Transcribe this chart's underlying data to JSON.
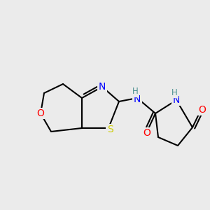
{
  "bg_color": "#ebebeb",
  "bond_color": "#000000",
  "bond_width": 1.5,
  "atom_colors": {
    "N": "#0000ff",
    "O": "#ff0000",
    "S": "#cccc00",
    "C": "#000000",
    "N_teal": "#4a9090"
  },
  "font_size": 10,
  "font_size_small": 9
}
